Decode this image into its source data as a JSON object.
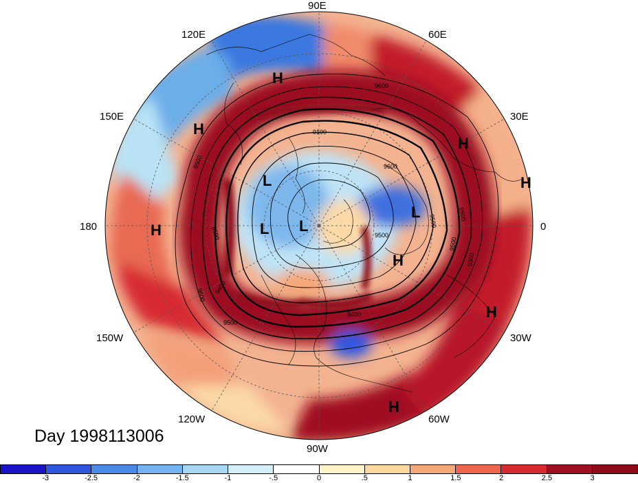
{
  "map": {
    "projection": "north-polar-stereographic",
    "field": "anomaly shading with geopotential height contours",
    "longitude_labels": [
      "90E",
      "60E",
      "30E",
      "0",
      "30W",
      "60W",
      "90W",
      "120W",
      "150W",
      "180",
      "150E",
      "120E"
    ],
    "contour_labels": [
      "9600",
      "9100",
      "9500",
      "9500",
      "9600",
      "9500",
      "9400",
      "9500",
      "9600",
      "9600",
      "9500",
      "9600",
      "9500",
      "9400"
    ],
    "pressure_centers": [
      {
        "type": "H"
      },
      {
        "type": "H"
      },
      {
        "type": "H"
      },
      {
        "type": "H"
      },
      {
        "type": "H"
      },
      {
        "type": "H"
      },
      {
        "type": "H"
      },
      {
        "type": "H"
      },
      {
        "type": "L"
      },
      {
        "type": "L"
      },
      {
        "type": "L"
      },
      {
        "type": "L"
      }
    ]
  },
  "day_label": "Day 1998113006",
  "colorbar": {
    "ticks": [
      "-3",
      "-2.5",
      "-2",
      "-1.5",
      "-1",
      "-.5",
      "0",
      ".5",
      "1",
      "1.5",
      "2",
      "2.5",
      "3"
    ],
    "colors": [
      "#1a14c8",
      "#2e57e0",
      "#4b8be8",
      "#74b3ef",
      "#a6d8f4",
      "#d3f0fa",
      "#ffffff",
      "#fff4c8",
      "#fcd8a0",
      "#f5a878",
      "#ef6650",
      "#d72b32",
      "#a01022",
      "#8e0b1c"
    ]
  }
}
